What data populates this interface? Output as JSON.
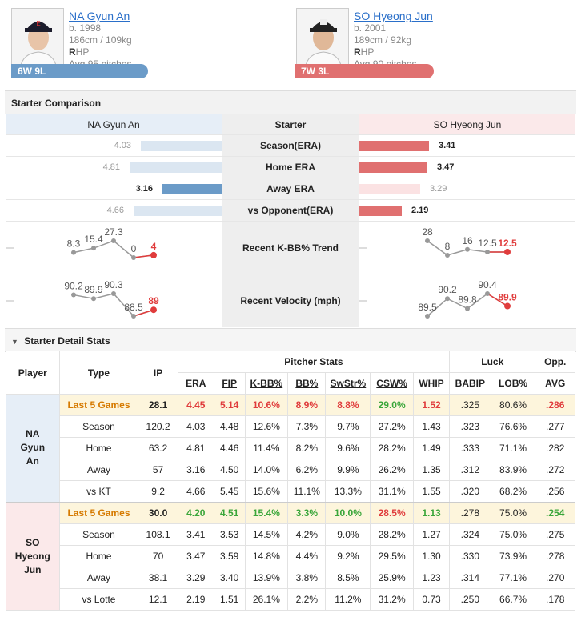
{
  "pitcher_a": {
    "name": "NA Gyun An",
    "born": "b. 1998",
    "size": "186cm / 109kg",
    "hand_letter": "R",
    "hand_rest": "HP",
    "avg_pitches": "Avg 95 pitches",
    "record": "6W 9L",
    "color": "#6b9bc8"
  },
  "pitcher_b": {
    "name": "SO Hyeong Jun",
    "born": "b. 2001",
    "size": "189cm / 92kg",
    "hand_letter": "R",
    "hand_rest": "HP",
    "avg_pitches": "Avg 90 pitches",
    "record": "7W 3L",
    "color": "#e07070"
  },
  "comparison": {
    "title": "Starter Comparison",
    "header_mid": "Starter",
    "rows": [
      {
        "label": "Season(ERA)",
        "a": "4.03",
        "b": "3.41",
        "a_frac": 0.44,
        "b_frac": 0.38,
        "winner": "b"
      },
      {
        "label": "Home ERA",
        "a": "4.81",
        "b": "3.47",
        "a_frac": 0.5,
        "b_frac": 0.37,
        "winner": "b"
      },
      {
        "label": "Away ERA",
        "a": "3.16",
        "b": "3.29",
        "a_frac": 0.32,
        "b_frac": 0.33,
        "winner": "a"
      },
      {
        "label": "vs Opponent(ERA)",
        "a": "4.66",
        "b": "2.19",
        "a_frac": 0.48,
        "b_frac": 0.23,
        "winner": "b"
      }
    ],
    "kbb_label": "Recent K-BB% Trend",
    "kbb_a": [
      "8.3",
      "15.4",
      "27.3",
      "0",
      "4"
    ],
    "kbb_b": [
      "28",
      "8",
      "16",
      "12.5",
      "12.5"
    ],
    "kbb_a_vals": [
      8.3,
      15.4,
      27.3,
      0,
      4
    ],
    "kbb_b_vals": [
      28,
      8,
      16,
      12.5,
      12.5
    ],
    "velo_label": "Recent Velocity (mph)",
    "velo_a": [
      "90.2",
      "89.9",
      "90.3",
      "88.5",
      "89"
    ],
    "velo_b": [
      "89.5",
      "90.2",
      "89.8",
      "90.4",
      "89.9"
    ],
    "velo_a_vals": [
      90.2,
      89.9,
      90.3,
      88.5,
      89
    ],
    "velo_b_vals": [
      89.5,
      90.2,
      89.8,
      90.4,
      89.9
    ]
  },
  "details": {
    "title": "Starter Detail Stats",
    "headers": {
      "player": "Player",
      "type": "Type",
      "ip": "IP",
      "group_pitcher": "Pitcher Stats",
      "group_luck": "Luck",
      "group_opp": "Opp.",
      "era": "ERA",
      "fip": "FIP",
      "kbb": "K-BB%",
      "bb": "BB%",
      "swstr": "SwStr%",
      "csw": "CSW%",
      "whip": "WHIP",
      "babip": "BABIP",
      "lob": "LOB%",
      "avg": "AVG"
    },
    "a_name_lines": [
      "NA",
      "Gyun",
      "An"
    ],
    "b_name_lines": [
      "SO",
      "Hyeong",
      "Jun"
    ],
    "a_rows": [
      [
        "Last 5 Games",
        "28.1",
        "4.45",
        "5.14",
        "10.6%",
        "8.9%",
        "8.8%",
        "29.0%",
        "1.52",
        ".325",
        "80.6%",
        ".286"
      ],
      [
        "Season",
        "120.2",
        "4.03",
        "4.48",
        "12.6%",
        "7.3%",
        "9.7%",
        "27.2%",
        "1.43",
        ".323",
        "76.6%",
        ".277"
      ],
      [
        "Home",
        "63.2",
        "4.81",
        "4.46",
        "11.4%",
        "8.2%",
        "9.6%",
        "28.2%",
        "1.49",
        ".333",
        "71.1%",
        ".282"
      ],
      [
        "Away",
        "57",
        "3.16",
        "4.50",
        "14.0%",
        "6.2%",
        "9.9%",
        "26.2%",
        "1.35",
        ".312",
        "83.9%",
        ".272"
      ],
      [
        "vs KT",
        "9.2",
        "4.66",
        "5.45",
        "15.6%",
        "11.1%",
        "13.3%",
        "31.1%",
        "1.55",
        ".320",
        "68.2%",
        ".256"
      ]
    ],
    "b_rows": [
      [
        "Last 5 Games",
        "30.0",
        "4.20",
        "4.51",
        "15.4%",
        "3.3%",
        "10.0%",
        "28.5%",
        "1.13",
        ".278",
        "75.0%",
        ".254"
      ],
      [
        "Season",
        "108.1",
        "3.41",
        "3.53",
        "14.5%",
        "4.2%",
        "9.0%",
        "28.2%",
        "1.27",
        ".324",
        "75.0%",
        ".275"
      ],
      [
        "Home",
        "70",
        "3.47",
        "3.59",
        "14.8%",
        "4.4%",
        "9.2%",
        "29.5%",
        "1.30",
        ".330",
        "73.9%",
        ".278"
      ],
      [
        "Away",
        "38.1",
        "3.29",
        "3.40",
        "13.9%",
        "3.8%",
        "8.5%",
        "25.9%",
        "1.23",
        ".314",
        "77.1%",
        ".270"
      ],
      [
        "vs Lotte",
        "12.1",
        "2.19",
        "1.51",
        "26.1%",
        "2.2%",
        "11.2%",
        "31.2%",
        "0.73",
        ".250",
        "66.7%",
        ".178"
      ]
    ],
    "a_l5_colors": [
      "",
      "",
      "red",
      "red",
      "red",
      "red",
      "red",
      "green",
      "red",
      "",
      "",
      "red"
    ],
    "b_l5_colors": [
      "",
      "bk",
      "green",
      "green",
      "green",
      "green",
      "green",
      "red",
      "green",
      "",
      "",
      "green"
    ]
  }
}
